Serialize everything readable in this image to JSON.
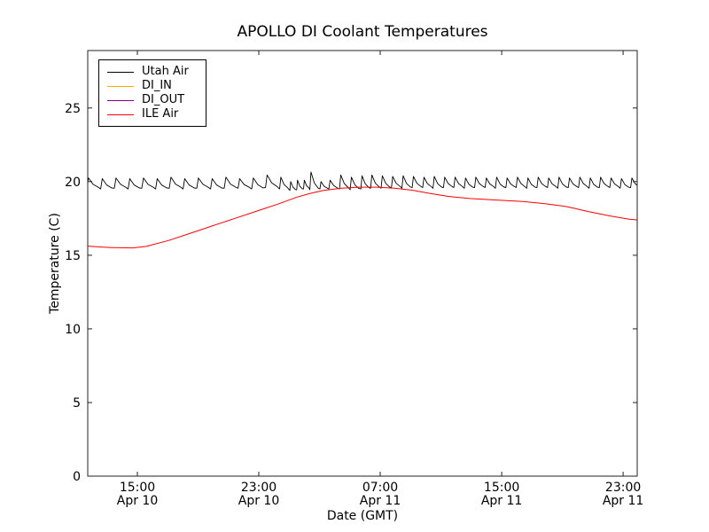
{
  "figure": {
    "background": "#ffffff",
    "frame_color": "#222222"
  },
  "chart_data": {
    "type": "line",
    "title": "APOLLO DI Coolant Temperatures",
    "xlabel": "Date (GMT)",
    "ylabel": "Temperature (C)",
    "x_units": "hours since Apr 10 00:00 GMT",
    "xlim": [
      11.73,
      47.93
    ],
    "ylim": [
      0,
      28.9
    ],
    "grid": false,
    "legend_position": "upper left",
    "yticks": [
      {
        "value": 0,
        "label": "0"
      },
      {
        "value": 5,
        "label": "5"
      },
      {
        "value": 10,
        "label": "10"
      },
      {
        "value": 15,
        "label": "15"
      },
      {
        "value": 20,
        "label": "20"
      },
      {
        "value": 25,
        "label": "25"
      }
    ],
    "xticks": [
      {
        "value": 15,
        "label": "15:00",
        "sublabel": "Apr 10"
      },
      {
        "value": 23,
        "label": "23:00",
        "sublabel": "Apr 10"
      },
      {
        "value": 31,
        "label": "07:00",
        "sublabel": "Apr 11"
      },
      {
        "value": 39,
        "label": "15:00",
        "sublabel": "Apr 11"
      },
      {
        "value": 47,
        "label": "23:00",
        "sublabel": "Apr 11"
      }
    ],
    "series": [
      {
        "name": "Utah Air",
        "color": "#000000",
        "line_width": 0.9,
        "type": "sawtooth",
        "start": [
          11.73,
          20.1
        ],
        "cycles": [
          [
            11.78,
            20.25,
            19.55
          ],
          [
            12.69,
            20.2,
            19.5
          ],
          [
            13.59,
            20.25,
            19.55
          ],
          [
            14.5,
            20.2,
            19.5
          ],
          [
            15.4,
            20.25,
            19.55
          ],
          [
            16.31,
            20.2,
            19.5
          ],
          [
            17.21,
            20.3,
            19.55
          ],
          [
            18.12,
            20.2,
            19.5
          ],
          [
            19.02,
            20.25,
            19.55
          ],
          [
            19.93,
            20.2,
            19.5
          ],
          [
            20.83,
            20.3,
            19.55
          ],
          [
            21.74,
            20.2,
            19.55
          ],
          [
            22.64,
            20.25,
            19.5
          ],
          [
            23.55,
            20.45,
            19.6
          ],
          [
            24.45,
            20.3,
            19.5
          ],
          [
            25.1,
            20.0,
            19.4
          ],
          [
            25.55,
            20.1,
            19.45
          ],
          [
            26.0,
            20.1,
            19.5
          ],
          [
            26.44,
            20.65,
            19.45
          ],
          [
            27.1,
            20.0,
            19.5
          ],
          [
            27.7,
            20.1,
            19.5
          ],
          [
            28.4,
            20.45,
            19.5
          ],
          [
            29.1,
            20.3,
            19.45
          ],
          [
            29.8,
            20.4,
            19.5
          ],
          [
            30.45,
            20.45,
            19.55
          ],
          [
            31.14,
            20.4,
            19.55
          ],
          [
            31.82,
            20.35,
            19.6
          ],
          [
            32.51,
            20.4,
            19.55
          ],
          [
            33.19,
            20.35,
            19.6
          ],
          [
            33.88,
            20.3,
            19.6
          ],
          [
            34.56,
            20.35,
            19.55
          ],
          [
            35.25,
            20.3,
            19.6
          ],
          [
            35.93,
            20.3,
            19.6
          ],
          [
            36.62,
            20.25,
            19.55
          ],
          [
            37.3,
            20.3,
            19.6
          ],
          [
            37.99,
            20.25,
            19.6
          ],
          [
            38.67,
            20.3,
            19.55
          ],
          [
            39.36,
            20.25,
            19.6
          ],
          [
            40.04,
            20.3,
            19.6
          ],
          [
            40.73,
            20.25,
            19.55
          ],
          [
            41.41,
            20.3,
            19.6
          ],
          [
            42.1,
            20.25,
            19.6
          ],
          [
            42.78,
            20.3,
            19.55
          ],
          [
            43.47,
            20.25,
            19.6
          ],
          [
            44.15,
            20.3,
            19.6
          ],
          [
            44.84,
            20.25,
            19.55
          ],
          [
            45.52,
            20.3,
            19.6
          ],
          [
            46.21,
            20.25,
            19.6
          ],
          [
            46.89,
            20.2,
            19.55
          ],
          [
            47.58,
            20.25,
            19.6
          ]
        ]
      },
      {
        "name": "DI_IN",
        "color": "#ffa500",
        "line_width": 1,
        "type": "line",
        "points": []
      },
      {
        "name": "DI_OUT",
        "color": "#800080",
        "line_width": 1,
        "type": "line",
        "points": []
      },
      {
        "name": "ILE Air",
        "color": "#ff0000",
        "line_width": 1,
        "type": "line",
        "points": [
          [
            11.73,
            15.62
          ],
          [
            13.25,
            15.52
          ],
          [
            14.71,
            15.5
          ],
          [
            15.58,
            15.6
          ],
          [
            17.04,
            16.0
          ],
          [
            18.5,
            16.5
          ],
          [
            19.96,
            17.0
          ],
          [
            21.42,
            17.5
          ],
          [
            22.88,
            18.0
          ],
          [
            24.34,
            18.5
          ],
          [
            25.51,
            18.95
          ],
          [
            26.39,
            19.2
          ],
          [
            27.26,
            19.4
          ],
          [
            28.43,
            19.55
          ],
          [
            29.6,
            19.62
          ],
          [
            30.77,
            19.62
          ],
          [
            31.93,
            19.55
          ],
          [
            33.1,
            19.42
          ],
          [
            34.27,
            19.2
          ],
          [
            35.44,
            19.0
          ],
          [
            36.9,
            18.85
          ],
          [
            38.65,
            18.75
          ],
          [
            40.4,
            18.65
          ],
          [
            41.86,
            18.5
          ],
          [
            43.32,
            18.3
          ],
          [
            44.78,
            17.95
          ],
          [
            46.24,
            17.65
          ],
          [
            47.41,
            17.45
          ],
          [
            47.93,
            17.4
          ]
        ]
      }
    ]
  }
}
